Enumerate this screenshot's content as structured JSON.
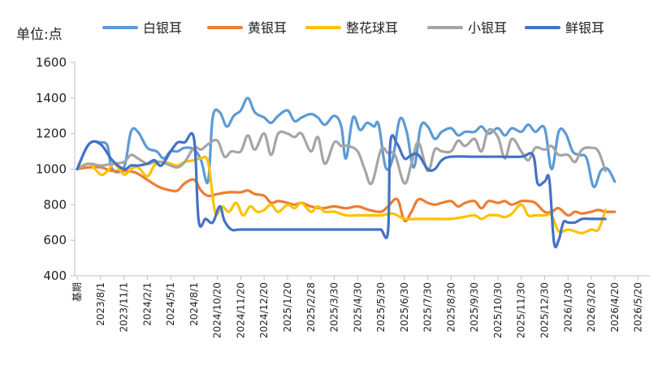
{
  "chart_data": {
    "type": "line",
    "ylabel": "单位:点",
    "ylim": [
      400,
      1600
    ],
    "yticks": [
      400,
      600,
      800,
      1000,
      1200,
      1400,
      1600
    ],
    "legend_position": "top",
    "grid": false,
    "x_tick_labels": [
      "基期",
      "2023/8/1",
      "2023/11/1",
      "2024/2/1",
      "2024/5/1",
      "2024/8/1",
      "2024/10/20",
      "2024/11/20",
      "2024/12/20",
      "2025/1/20",
      "2025/2/28",
      "2025/3/30",
      "2025/4/30",
      "2025/5/30",
      "2025/6/30",
      "2025/7/30",
      "2025/8/30",
      "2025/9/30",
      "2025/10/30",
      "2025/11/30",
      "2025/12/30",
      "2026/1/30",
      "2026/3/20",
      "2026/4/20",
      "2026/5/20"
    ],
    "x_count": 24.5,
    "series": [
      {
        "name": "白银耳",
        "color": "#5B9BD5",
        "points": [
          [
            0,
            1000
          ],
          [
            0.5,
            1140
          ],
          [
            1,
            1150
          ],
          [
            1.3,
            1130
          ],
          [
            1.5,
            1000
          ],
          [
            2,
            1010
          ],
          [
            2.3,
            1210
          ],
          [
            2.6,
            1210
          ],
          [
            3,
            1120
          ],
          [
            3.4,
            1100
          ],
          [
            3.7,
            1060
          ],
          [
            4,
            1100
          ],
          [
            4.3,
            1100
          ],
          [
            4.6,
            1120
          ],
          [
            5,
            1110
          ],
          [
            5.3,
            1050
          ],
          [
            5.6,
            930
          ],
          [
            5.8,
            1290
          ],
          [
            6.1,
            1320
          ],
          [
            6.4,
            1240
          ],
          [
            6.7,
            1300
          ],
          [
            7,
            1330
          ],
          [
            7.3,
            1400
          ],
          [
            7.6,
            1320
          ],
          [
            8,
            1290
          ],
          [
            8.3,
            1260
          ],
          [
            8.6,
            1300
          ],
          [
            9,
            1330
          ],
          [
            9.3,
            1270
          ],
          [
            9.6,
            1290
          ],
          [
            10,
            1310
          ],
          [
            10.3,
            1290
          ],
          [
            10.6,
            1250
          ],
          [
            11,
            1300
          ],
          [
            11.3,
            1240
          ],
          [
            11.5,
            1060
          ],
          [
            11.8,
            1290
          ],
          [
            12.1,
            1220
          ],
          [
            12.4,
            1260
          ],
          [
            12.7,
            1240
          ],
          [
            12.9,
            1250
          ],
          [
            13.2,
            1010
          ],
          [
            13.5,
            1060
          ],
          [
            13.8,
            1280
          ],
          [
            14.1,
            1210
          ],
          [
            14.4,
            1010
          ],
          [
            14.7,
            1240
          ],
          [
            15,
            1240
          ],
          [
            15.3,
            1170
          ],
          [
            15.6,
            1210
          ],
          [
            16,
            1230
          ],
          [
            16.3,
            1190
          ],
          [
            16.6,
            1210
          ],
          [
            17,
            1210
          ],
          [
            17.3,
            1240
          ],
          [
            17.6,
            1200
          ],
          [
            18,
            1230
          ],
          [
            18.3,
            1190
          ],
          [
            18.6,
            1230
          ],
          [
            19,
            1210
          ],
          [
            19.3,
            1250
          ],
          [
            19.6,
            1210
          ],
          [
            20,
            1230
          ],
          [
            20.3,
            1000
          ],
          [
            20.6,
            1210
          ],
          [
            20.9,
            1200
          ],
          [
            21.2,
            1100
          ],
          [
            21.5,
            1080
          ],
          [
            21.8,
            1060
          ],
          [
            22.1,
            900
          ],
          [
            22.4,
            990
          ],
          [
            22.7,
            1000
          ],
          [
            23,
            930
          ]
        ]
      },
      {
        "name": "黄银耳",
        "color": "#ED7D31",
        "points": [
          [
            0,
            1000
          ],
          [
            0.5,
            1010
          ],
          [
            1,
            1010
          ],
          [
            1.5,
            990
          ],
          [
            2,
            990
          ],
          [
            2.5,
            980
          ],
          [
            3,
            940
          ],
          [
            3.5,
            900
          ],
          [
            4,
            880
          ],
          [
            4.3,
            880
          ],
          [
            4.6,
            920
          ],
          [
            5,
            940
          ],
          [
            5.3,
            880
          ],
          [
            5.6,
            850
          ],
          [
            6,
            860
          ],
          [
            6.5,
            870
          ],
          [
            7,
            870
          ],
          [
            7.3,
            880
          ],
          [
            7.6,
            860
          ],
          [
            8,
            850
          ],
          [
            8.3,
            810
          ],
          [
            8.6,
            820
          ],
          [
            9,
            810
          ],
          [
            9.3,
            800
          ],
          [
            9.6,
            810
          ],
          [
            10,
            790
          ],
          [
            10.5,
            780
          ],
          [
            11,
            790
          ],
          [
            11.5,
            780
          ],
          [
            12,
            790
          ],
          [
            12.5,
            770
          ],
          [
            13,
            760
          ],
          [
            13.3,
            790
          ],
          [
            13.7,
            830
          ],
          [
            14,
            710
          ],
          [
            14.3,
            760
          ],
          [
            14.6,
            830
          ],
          [
            15,
            810
          ],
          [
            15.3,
            800
          ],
          [
            15.6,
            810
          ],
          [
            16,
            820
          ],
          [
            16.3,
            790
          ],
          [
            16.6,
            810
          ],
          [
            17,
            820
          ],
          [
            17.3,
            780
          ],
          [
            17.6,
            820
          ],
          [
            18,
            810
          ],
          [
            18.3,
            820
          ],
          [
            18.6,
            800
          ],
          [
            19,
            820
          ],
          [
            19.3,
            820
          ],
          [
            19.6,
            810
          ],
          [
            20,
            760
          ],
          [
            20.3,
            760
          ],
          [
            20.6,
            780
          ],
          [
            21,
            740
          ],
          [
            21.3,
            760
          ],
          [
            21.6,
            750
          ],
          [
            22,
            760
          ],
          [
            22.3,
            770
          ],
          [
            22.6,
            760
          ],
          [
            23,
            760
          ]
        ]
      },
      {
        "name": "整花球耳",
        "color": "#FFC000",
        "points": [
          [
            0,
            1000
          ],
          [
            0.5,
            1030
          ],
          [
            1,
            970
          ],
          [
            1.3,
            990
          ],
          [
            1.6,
            1030
          ],
          [
            2,
            970
          ],
          [
            2.3,
            1000
          ],
          [
            2.6,
            1010
          ],
          [
            3,
            960
          ],
          [
            3.3,
            1020
          ],
          [
            3.6,
            1040
          ],
          [
            4,
            1030
          ],
          [
            4.3,
            1020
          ],
          [
            4.6,
            1040
          ],
          [
            5,
            1050
          ],
          [
            5.3,
            1060
          ],
          [
            5.6,
            1040
          ],
          [
            5.9,
            760
          ],
          [
            6.2,
            790
          ],
          [
            6.5,
            760
          ],
          [
            6.8,
            810
          ],
          [
            7.1,
            740
          ],
          [
            7.4,
            790
          ],
          [
            7.7,
            760
          ],
          [
            8,
            770
          ],
          [
            8.3,
            800
          ],
          [
            8.6,
            760
          ],
          [
            9,
            800
          ],
          [
            9.3,
            780
          ],
          [
            9.6,
            810
          ],
          [
            10,
            760
          ],
          [
            10.3,
            790
          ],
          [
            10.6,
            760
          ],
          [
            11,
            760
          ],
          [
            11.5,
            740
          ],
          [
            12,
            740
          ],
          [
            12.5,
            740
          ],
          [
            13,
            740
          ],
          [
            13.5,
            750
          ],
          [
            14,
            720
          ],
          [
            14.5,
            720
          ],
          [
            15,
            720
          ],
          [
            15.5,
            720
          ],
          [
            16,
            720
          ],
          [
            16.5,
            730
          ],
          [
            17,
            740
          ],
          [
            17.3,
            720
          ],
          [
            17.6,
            740
          ],
          [
            18,
            740
          ],
          [
            18.3,
            730
          ],
          [
            18.6,
            750
          ],
          [
            19,
            800
          ],
          [
            19.3,
            740
          ],
          [
            19.6,
            740
          ],
          [
            20,
            740
          ],
          [
            20.3,
            740
          ],
          [
            20.6,
            650
          ],
          [
            21,
            660
          ],
          [
            21.3,
            650
          ],
          [
            21.6,
            640
          ],
          [
            22,
            660
          ],
          [
            22.3,
            660
          ],
          [
            22.6,
            770
          ]
        ]
      },
      {
        "name": "小银耳",
        "color": "#A5A5A5",
        "points": [
          [
            0,
            1000
          ],
          [
            0.5,
            1030
          ],
          [
            1,
            1020
          ],
          [
            1.5,
            1030
          ],
          [
            2,
            1040
          ],
          [
            2.3,
            1080
          ],
          [
            2.6,
            1060
          ],
          [
            3,
            1030
          ],
          [
            3.3,
            1040
          ],
          [
            3.6,
            1040
          ],
          [
            4,
            1020
          ],
          [
            4.3,
            1010
          ],
          [
            4.6,
            1040
          ],
          [
            5,
            1120
          ],
          [
            5.3,
            1110
          ],
          [
            5.6,
            1140
          ],
          [
            6,
            1160
          ],
          [
            6.3,
            1070
          ],
          [
            6.6,
            1100
          ],
          [
            7,
            1100
          ],
          [
            7.3,
            1190
          ],
          [
            7.6,
            1110
          ],
          [
            8,
            1200
          ],
          [
            8.3,
            1080
          ],
          [
            8.6,
            1200
          ],
          [
            9,
            1200
          ],
          [
            9.3,
            1180
          ],
          [
            9.6,
            1200
          ],
          [
            10,
            1100
          ],
          [
            10.3,
            1180
          ],
          [
            10.6,
            1030
          ],
          [
            11,
            1150
          ],
          [
            11.3,
            1130
          ],
          [
            11.6,
            1130
          ],
          [
            12,
            1100
          ],
          [
            12.3,
            1000
          ],
          [
            12.6,
            920
          ],
          [
            13,
            1110
          ],
          [
            13.3,
            1090
          ],
          [
            13.6,
            1080
          ],
          [
            14,
            920
          ],
          [
            14.3,
            1030
          ],
          [
            14.6,
            1150
          ],
          [
            15,
            990
          ],
          [
            15.3,
            1110
          ],
          [
            15.6,
            1100
          ],
          [
            16,
            1100
          ],
          [
            16.3,
            1160
          ],
          [
            16.6,
            1130
          ],
          [
            17,
            1170
          ],
          [
            17.3,
            1100
          ],
          [
            17.6,
            1220
          ],
          [
            18,
            1180
          ],
          [
            18.3,
            1060
          ],
          [
            18.6,
            1170
          ],
          [
            19,
            1100
          ],
          [
            19.3,
            1050
          ],
          [
            19.6,
            1120
          ],
          [
            20,
            1110
          ],
          [
            20.3,
            1130
          ],
          [
            20.6,
            1080
          ],
          [
            21,
            1080
          ],
          [
            21.3,
            1040
          ],
          [
            21.6,
            1110
          ],
          [
            22,
            1120
          ],
          [
            22.3,
            1100
          ],
          [
            22.6,
            990
          ]
        ]
      },
      {
        "name": "鲜银耳",
        "color": "#4472C4",
        "points": [
          [
            0,
            1000
          ],
          [
            0.5,
            1140
          ],
          [
            1,
            1140
          ],
          [
            1.5,
            1050
          ],
          [
            2,
            1000
          ],
          [
            2.3,
            1020
          ],
          [
            2.6,
            1020
          ],
          [
            3,
            1030
          ],
          [
            3.3,
            1050
          ],
          [
            3.6,
            1020
          ],
          [
            4,
            1100
          ],
          [
            4.3,
            1150
          ],
          [
            4.6,
            1150
          ],
          [
            5,
            1170
          ],
          [
            5.2,
            710
          ],
          [
            5.5,
            720
          ],
          [
            5.8,
            700
          ],
          [
            6.1,
            790
          ],
          [
            6.3,
            710
          ],
          [
            6.6,
            660
          ],
          [
            7,
            660
          ],
          [
            8,
            660
          ],
          [
            9,
            660
          ],
          [
            10,
            660
          ],
          [
            11,
            660
          ],
          [
            12,
            660
          ],
          [
            12.8,
            660
          ],
          [
            13,
            660
          ],
          [
            13.3,
            650
          ],
          [
            13.4,
            1150
          ],
          [
            13.7,
            1140
          ],
          [
            14,
            1060
          ],
          [
            14.3,
            1080
          ],
          [
            14.6,
            1080
          ],
          [
            15,
            1000
          ],
          [
            15.3,
            1000
          ],
          [
            15.6,
            1050
          ],
          [
            16,
            1070
          ],
          [
            17,
            1070
          ],
          [
            18,
            1070
          ],
          [
            19,
            1070
          ],
          [
            19.5,
            1080
          ],
          [
            19.7,
            920
          ],
          [
            20,
            930
          ],
          [
            20.2,
            940
          ],
          [
            20.4,
            590
          ],
          [
            20.6,
            600
          ],
          [
            20.8,
            700
          ],
          [
            21,
            700
          ],
          [
            21.3,
            700
          ],
          [
            21.6,
            720
          ],
          [
            22,
            720
          ],
          [
            22.6,
            720
          ]
        ]
      }
    ]
  }
}
